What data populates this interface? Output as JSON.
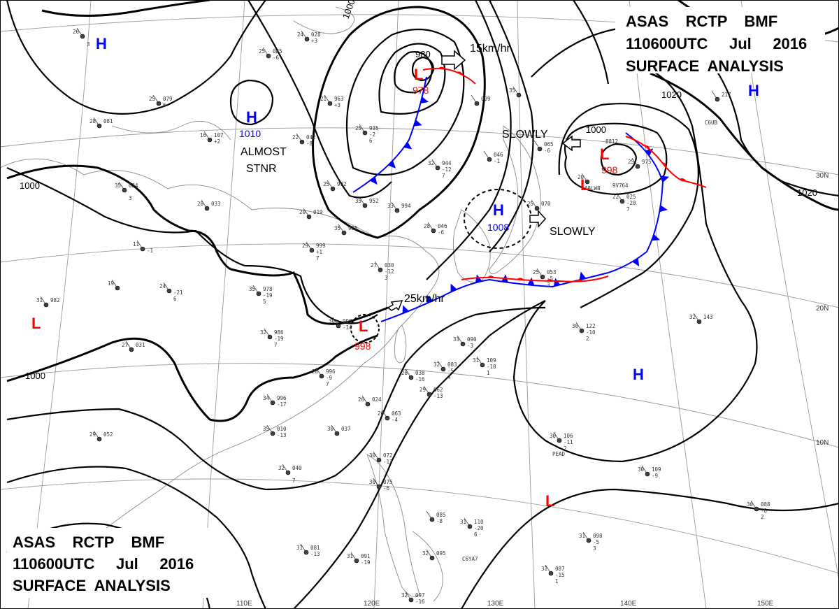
{
  "header": {
    "line1": "ASAS    RCTP    BMF",
    "line2": "110600UTC     Jul     2016",
    "line3": "SURFACE  ANALYSIS"
  },
  "colors": {
    "low": "#ff0000",
    "high": "#0000ff",
    "cold_front": "#0000ff",
    "warm_front": "#ff0000",
    "isobar": "#000000",
    "coast": "#888888"
  },
  "pressure_centers": [
    {
      "id": "high-west",
      "type": "H",
      "value": "1010"
    },
    {
      "id": "low-north",
      "type": "L",
      "value": "978"
    },
    {
      "id": "low-northeast",
      "type": "L",
      "value": "998"
    },
    {
      "id": "high-center",
      "type": "H",
      "value": "1008"
    },
    {
      "id": "low-taiwan-strait",
      "type": "L",
      "value": "998"
    },
    {
      "id": "high-pacific",
      "type": "H",
      "value": ""
    },
    {
      "id": "high-northwest",
      "type": "H",
      "value": ""
    },
    {
      "id": "high-northeast",
      "type": "H",
      "value": ""
    },
    {
      "id": "low-west",
      "type": "L",
      "value": ""
    },
    {
      "id": "low-south",
      "type": "L",
      "value": ""
    }
  ],
  "isobar_labels": [
    "1000",
    "1000",
    "1000",
    "1020",
    "1020",
    "1000",
    "980"
  ],
  "annotations": {
    "almost_stnr_1": "ALMOST",
    "almost_stnr_2": "STNR",
    "slowly_1": "SLOWLY",
    "slowly_2": "SLOWLY",
    "speed_north": "15km/hr",
    "speed_south": "25km/hr"
  },
  "latitudes": [
    "30N",
    "20N",
    "10N"
  ],
  "longitudes": [
    "110E",
    "120E",
    "130E",
    "140E",
    "150E"
  ],
  "stations": [
    {
      "t": "26",
      "p": "",
      "x": "",
      "a": "3"
    },
    {
      "t": "24",
      "p": "028",
      "x": "+3",
      "a": ""
    },
    {
      "t": "25",
      "p": "085",
      "x": "-6",
      "a": ""
    },
    {
      "t": "25",
      "p": "079",
      "x": "6",
      "a": ""
    },
    {
      "t": "28",
      "p": "081",
      "x": "",
      "a": ""
    },
    {
      "t": "16",
      "p": "107",
      "x": "+2",
      "a": ""
    },
    {
      "t": "22",
      "p": "042",
      "x": "-8",
      "a": ""
    },
    {
      "t": "21",
      "p": "963",
      "x": "+3",
      "a": ""
    },
    {
      "t": "25",
      "p": "935",
      "x": "-2",
      "a": "6"
    },
    {
      "t": "32",
      "p": "944",
      "x": "-12",
      "a": "7"
    },
    {
      "t": "25",
      "p": "992",
      "x": "",
      "a": ""
    },
    {
      "t": "35",
      "p": "952",
      "x": "",
      "a": ""
    },
    {
      "t": "33",
      "p": "994",
      "x": "",
      "a": ""
    },
    {
      "t": "28",
      "p": "033",
      "x": "",
      "a": ""
    },
    {
      "t": "35",
      "p": "024",
      "x": "",
      "a": "3"
    },
    {
      "t": "20",
      "p": "019",
      "x": "",
      "a": ""
    },
    {
      "t": "35",
      "p": "985",
      "x": "",
      "a": ""
    },
    {
      "t": "29",
      "p": "999",
      "x": "+1",
      "a": "7"
    },
    {
      "t": "11",
      "p": "",
      "x": "-1",
      "a": ""
    },
    {
      "t": "27",
      "p": "030",
      "x": "-12",
      "a": "3"
    },
    {
      "t": "35",
      "p": "978",
      "x": "-19",
      "a": "5"
    },
    {
      "t": "24",
      "p": "",
      "x": "-21",
      "a": "6"
    },
    {
      "t": "19",
      "p": "",
      "x": "",
      "a": ""
    },
    {
      "t": "31",
      "p": "982",
      "x": "",
      "a": ""
    },
    {
      "t": "27",
      "p": "031",
      "x": "",
      "a": ""
    },
    {
      "t": "32",
      "p": "986",
      "x": "-19",
      "a": "7"
    },
    {
      "t": "30",
      "p": "998",
      "x": "-14",
      "a": ""
    },
    {
      "t": "28",
      "p": "996",
      "x": "-9",
      "a": "7"
    },
    {
      "t": "34",
      "p": "996",
      "x": "-17",
      "a": ""
    },
    {
      "t": "35",
      "p": "010",
      "x": "-13",
      "a": ""
    },
    {
      "t": "29",
      "p": "052",
      "x": "",
      "a": ""
    },
    {
      "t": "32",
      "p": "040",
      "x": "",
      "a": "7"
    },
    {
      "t": "30",
      "p": "037",
      "x": "",
      "a": ""
    },
    {
      "t": "26",
      "p": "024",
      "x": "",
      "a": ""
    },
    {
      "t": "26",
      "p": "063",
      "x": "-4",
      "a": ""
    },
    {
      "t": "28",
      "p": "038",
      "x": "-16",
      "a": ""
    },
    {
      "t": "29",
      "p": "062",
      "x": "-13",
      "a": ""
    },
    {
      "t": "32",
      "p": "083",
      "x": "-5",
      "a": "4"
    },
    {
      "t": "33",
      "p": "090",
      "x": "-3",
      "a": ""
    },
    {
      "t": "31",
      "p": "109",
      "x": "-10",
      "a": "1"
    },
    {
      "t": "30",
      "p": "072",
      "x": "-13",
      "a": ""
    },
    {
      "t": "30",
      "p": "075",
      "x": "-6",
      "a": ""
    },
    {
      "t": "",
      "p": "085",
      "x": "-8",
      "a": ""
    },
    {
      "t": "31",
      "p": "110",
      "x": "-20",
      "a": "6"
    },
    {
      "t": "31",
      "p": "081",
      "x": "-13",
      "a": ""
    },
    {
      "t": "31",
      "p": "091",
      "x": "-19",
      "a": ""
    },
    {
      "t": "32",
      "p": "095",
      "x": "",
      "a": ""
    },
    {
      "t": "32",
      "p": "097",
      "x": "-16",
      "a": ""
    },
    {
      "t": "31",
      "p": "087",
      "x": "-15",
      "a": "1"
    },
    {
      "t": "31",
      "p": "098",
      "x": "-5",
      "a": "3"
    },
    {
      "t": "30",
      "p": "106",
      "x": "-11",
      "a": "2"
    },
    {
      "t": "30",
      "p": "109",
      "x": "-9",
      "a": ""
    },
    {
      "t": "30",
      "p": "088",
      "x": "-8",
      "a": "2"
    },
    {
      "t": "30",
      "p": "122",
      "x": "-10",
      "a": "2"
    },
    {
      "t": "32",
      "p": "143",
      "x": "",
      "a": ""
    },
    {
      "t": "25",
      "p": "053",
      "x": "-5",
      "a": "3"
    },
    {
      "t": "22",
      "p": "025",
      "x": "-20",
      "a": "7"
    },
    {
      "t": "20",
      "p": "",
      "x": "",
      "a": ""
    },
    {
      "t": "25",
      "p": "975",
      "x": "",
      "a": ""
    },
    {
      "t": "25",
      "p": "070",
      "x": "",
      "a": ""
    },
    {
      "t": "",
      "p": "046",
      "x": "-1",
      "a": ""
    },
    {
      "t": "",
      "p": "065",
      "x": "-6",
      "a": ""
    },
    {
      "t": "",
      "p": "099",
      "x": "",
      "a": ""
    },
    {
      "t": "28",
      "p": "046",
      "x": "-6",
      "a": ""
    },
    {
      "t": "",
      "p": "217",
      "x": "",
      "a": ""
    },
    {
      "t": "35",
      "p": "",
      "x": "",
      "a": ""
    }
  ],
  "station_ids": [
    "9V764",
    "A8LW8",
    "C6UB",
    "C6YA7",
    "PEAD",
    "8812"
  ]
}
